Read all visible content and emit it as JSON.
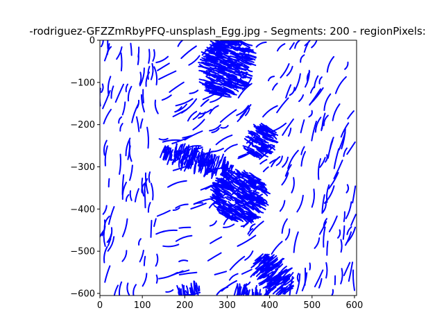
{
  "chart_data": {
    "type": "line",
    "title": "-rodriguez-GFZZmRbyPFQ-unsplash_Egg.jpg - Segments: 200 - regionPixels:",
    "xlabel": "",
    "ylabel": "",
    "xlim": [
      0,
      605
    ],
    "ylim": [
      -605,
      0
    ],
    "xticks": [
      0,
      100,
      200,
      300,
      400,
      500,
      600
    ],
    "yticks": [
      0,
      -100,
      -200,
      -300,
      -400,
      -500,
      -600
    ],
    "xtick_labels": [
      "0",
      "100",
      "200",
      "300",
      "400",
      "500",
      "600"
    ],
    "ytick_labels": [
      "0",
      "−100",
      "−200",
      "−300",
      "−400",
      "−500",
      "−600"
    ],
    "grid": false,
    "series_color": "#0000ff",
    "dense_regions": [
      {
        "cx": 300,
        "cy": -60,
        "rx": 75,
        "ry": 55,
        "angle": 70
      },
      {
        "cx": 230,
        "cy": -285,
        "rx": 85,
        "ry": 22,
        "angle": -15
      },
      {
        "cx": 380,
        "cy": -240,
        "rx": 40,
        "ry": 30,
        "angle": 60
      },
      {
        "cx": 330,
        "cy": -370,
        "rx": 60,
        "ry": 60,
        "angle": 60
      },
      {
        "cx": 410,
        "cy": -555,
        "rx": 55,
        "ry": 30,
        "angle": -50
      },
      {
        "cx": 210,
        "cy": -595,
        "rx": 30,
        "ry": 10,
        "angle": 10
      },
      {
        "cx": 355,
        "cy": -600,
        "rx": 45,
        "ry": 8,
        "angle": -10
      }
    ]
  }
}
